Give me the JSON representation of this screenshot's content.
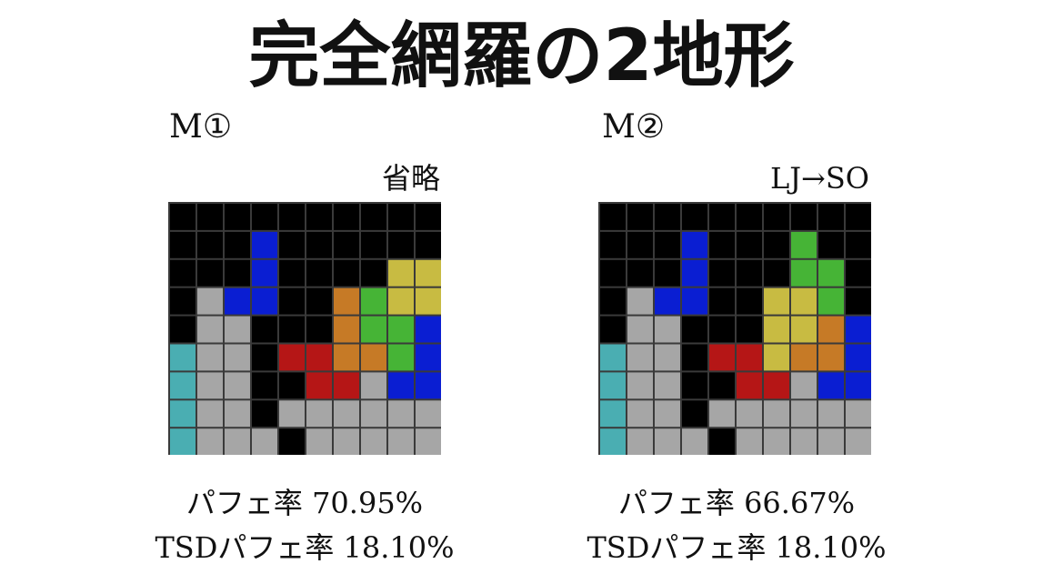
{
  "title": "完全網羅の2地形",
  "colors": {
    "X": "#000000",
    "G": "#a6a6a6",
    "B": "#0a1ed2",
    "C": "#4aaeb2",
    "R": "#b51616",
    "O": "#c67a26",
    "L": "#46b436",
    "Y": "#c8bb42",
    "grid": "#3a3a3a"
  },
  "panels": [
    {
      "label": "M①",
      "note": "省略",
      "perfect_clear_rate": "パフェ率 70.95%",
      "tsd_perfect_clear_rate": "TSDパフェ率 18.10%",
      "grid": [
        "XXXXXXXXXX",
        "XXXBXXXXXX",
        "XXXBXXXXYY",
        "XGBBXXOLYY",
        "XGGXXXOLLB",
        "CGGXRROOLB",
        "CGGXXRRGBB",
        "CGGXGGGGGG",
        "CGGGXGGGGG"
      ]
    },
    {
      "label": "M②",
      "note": "LJ→SO",
      "perfect_clear_rate": "パフェ率 66.67%",
      "tsd_perfect_clear_rate": "TSDパフェ率 18.10%",
      "grid": [
        "XXXXXXXXXX",
        "XXXBXXXLXX",
        "XXXBXXXLLX",
        "XGBBXXYYLX",
        "XGGXXXYYOB",
        "CGGXRRYOOB",
        "CGGXXRRGBB",
        "CGGXGGGGGG",
        "CGGGXGGGGG"
      ]
    }
  ]
}
